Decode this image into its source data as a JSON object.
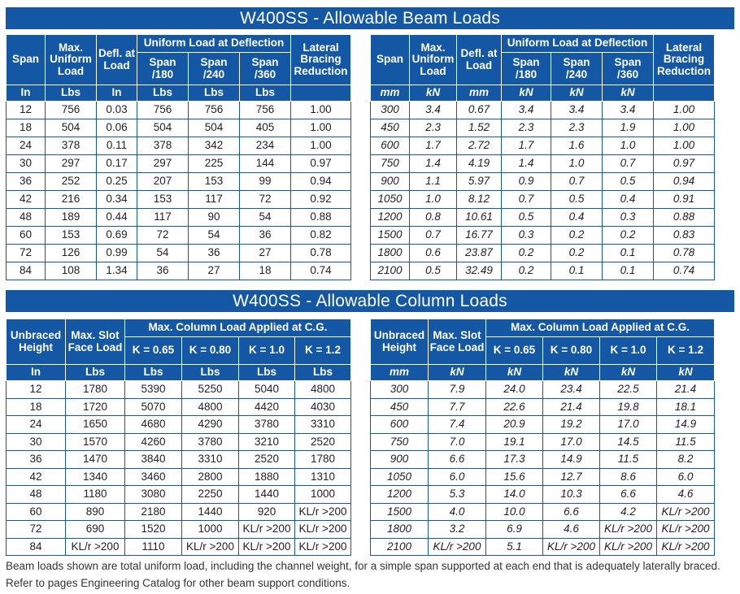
{
  "beam_title": "W400SS - Allowable Beam Loads",
  "column_title": "W400SS - Allowable Column Loads",
  "beam_headers": {
    "span": "Span",
    "max_uniform_load": "Max. Uniform Load",
    "defl_at_load": "Defl. at Load",
    "uniform_group": "Uniform Load at Deflection",
    "span180": "Span /180",
    "span240": "Span /240",
    "span360": "Span /360",
    "lateral": "Lateral Bracing Reduction"
  },
  "beam_units_imperial": [
    "In",
    "Lbs",
    "In",
    "Lbs",
    "Lbs",
    "Lbs"
  ],
  "beam_units_metric": [
    "mm",
    "kN",
    "mm",
    "kN",
    "kN",
    "kN"
  ],
  "beam_rows_imperial": [
    [
      "12",
      "756",
      "0.03",
      "756",
      "756",
      "756",
      "1.00"
    ],
    [
      "18",
      "504",
      "0.06",
      "504",
      "504",
      "405",
      "1.00"
    ],
    [
      "24",
      "378",
      "0.11",
      "378",
      "342",
      "234",
      "1.00"
    ],
    [
      "30",
      "297",
      "0.17",
      "297",
      "225",
      "144",
      "0.97"
    ],
    [
      "36",
      "252",
      "0.25",
      "207",
      "153",
      "99",
      "0.94"
    ],
    [
      "42",
      "216",
      "0.34",
      "153",
      "117",
      "72",
      "0.92"
    ],
    [
      "48",
      "189",
      "0.44",
      "117",
      "90",
      "54",
      "0.88"
    ],
    [
      "60",
      "153",
      "0.69",
      "72",
      "54",
      "36",
      "0.82"
    ],
    [
      "72",
      "126",
      "0.99",
      "54",
      "36",
      "27",
      "0.78"
    ],
    [
      "84",
      "108",
      "1.34",
      "36",
      "27",
      "18",
      "0.74"
    ]
  ],
  "beam_rows_metric": [
    [
      "300",
      "3.4",
      "0.67",
      "3.4",
      "3.4",
      "3.4",
      "1.00"
    ],
    [
      "450",
      "2.3",
      "1.52",
      "2.3",
      "2.3",
      "1.9",
      "1.00"
    ],
    [
      "600",
      "1.7",
      "2.72",
      "1.7",
      "1.6",
      "1.0",
      "1.00"
    ],
    [
      "750",
      "1.4",
      "4.19",
      "1.4",
      "1.0",
      "0.7",
      "0.97"
    ],
    [
      "900",
      "1.1",
      "5.97",
      "0.9",
      "0.7",
      "0.5",
      "0.94"
    ],
    [
      "1050",
      "1.0",
      "8.12",
      "0.7",
      "0.5",
      "0.4",
      "0.91"
    ],
    [
      "1200",
      "0.8",
      "10.61",
      "0.5",
      "0.4",
      "0.3",
      "0.88"
    ],
    [
      "1500",
      "0.7",
      "16.77",
      "0.3",
      "0.2",
      "0.2",
      "0.83"
    ],
    [
      "1800",
      "0.6",
      "23.87",
      "0.2",
      "0.2",
      "0.1",
      "0.78"
    ],
    [
      "2100",
      "0.5",
      "32.49",
      "0.2",
      "0.1",
      "0.1",
      "0.74"
    ]
  ],
  "column_headers": {
    "unbraced_height": "Unbraced Height",
    "max_slot_face_load": "Max. Slot Face Load",
    "max_column_group": "Max. Column Load Applied at C.G.",
    "k065": "K = 0.65",
    "k080": "K = 0.80",
    "k10": "K = 1.0",
    "k12": "K = 1.2"
  },
  "column_units_imperial": [
    "In",
    "Lbs",
    "Lbs",
    "Lbs",
    "Lbs",
    "Lbs"
  ],
  "column_units_metric": [
    "mm",
    "kN",
    "kN",
    "kN",
    "kN",
    "kN"
  ],
  "column_rows_imperial": [
    [
      "12",
      "1780",
      "5390",
      "5250",
      "5040",
      "4800"
    ],
    [
      "18",
      "1720",
      "5070",
      "4800",
      "4420",
      "4030"
    ],
    [
      "24",
      "1650",
      "4680",
      "4290",
      "3780",
      "3310"
    ],
    [
      "30",
      "1570",
      "4260",
      "3780",
      "3210",
      "2520"
    ],
    [
      "36",
      "1470",
      "3840",
      "3310",
      "2520",
      "1780"
    ],
    [
      "42",
      "1340",
      "3460",
      "2800",
      "1880",
      "1310"
    ],
    [
      "48",
      "1180",
      "3080",
      "2250",
      "1440",
      "1000"
    ],
    [
      "60",
      "890",
      "2180",
      "1440",
      "920",
      "KL/r >200"
    ],
    [
      "72",
      "690",
      "1520",
      "1000",
      "KL/r >200",
      "KL/r >200"
    ],
    [
      "84",
      "KL/r >200",
      "1110",
      "KL/r >200",
      "KL/r >200",
      "KL/r >200"
    ]
  ],
  "column_rows_metric": [
    [
      "300",
      "7.9",
      "24.0",
      "23.4",
      "22.5",
      "21.4"
    ],
    [
      "450",
      "7.7",
      "22.6",
      "21.4",
      "19.8",
      "18.1"
    ],
    [
      "600",
      "7.4",
      "20.9",
      "19.2",
      "17.0",
      "14.9"
    ],
    [
      "750",
      "7.0",
      "19.1",
      "17.0",
      "14.5",
      "11.5"
    ],
    [
      "900",
      "6.6",
      "17.3",
      "14.9",
      "11.5",
      "8.2"
    ],
    [
      "1050",
      "6.0",
      "15.6",
      "12.7",
      "8.6",
      "6.0"
    ],
    [
      "1200",
      "5.3",
      "14.0",
      "10.3",
      "6.6",
      "4.6"
    ],
    [
      "1500",
      "4.0",
      "10.0",
      "6.6",
      "4.2",
      "KL/r >200"
    ],
    [
      "1800",
      "3.2",
      "6.9",
      "4.6",
      "KL/r >200",
      "KL/r >200"
    ],
    [
      "2100",
      "KL/r >200",
      "5.1",
      "KL/r >200",
      "KL/r >200",
      "KL/r >200"
    ]
  ],
  "footnote_1": "Beam loads shown are total uniform load, including the channel weight, for a simple span supported at each end that is adequately laterally braced.",
  "footnote_2": "Refer to pages Engineering Catalog for  other beam support conditions.",
  "colors": {
    "header_blue": "#1457a5",
    "text": "#222222"
  }
}
